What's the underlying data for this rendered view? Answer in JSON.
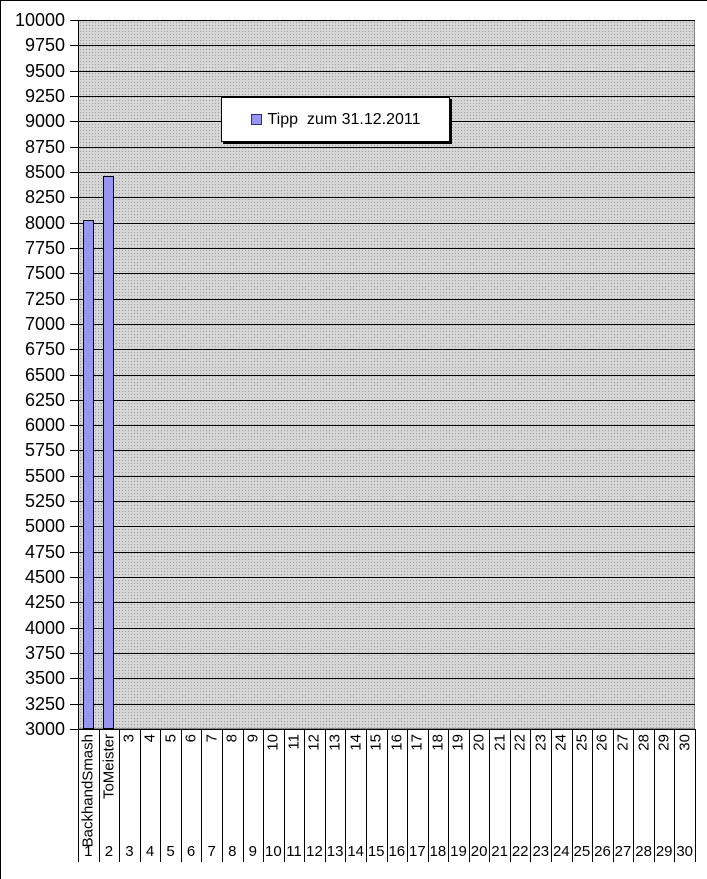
{
  "chart_data": {
    "type": "bar",
    "title": "",
    "legend": {
      "label": "Tipp  zum 31.12.2011",
      "position": "top-center"
    },
    "y_axis": {
      "min": 3000,
      "max": 10000,
      "step": 250,
      "ticks": [
        "10000",
        "9750",
        "9500",
        "9250",
        "9000",
        "8750",
        "8500",
        "8250",
        "8000",
        "7750",
        "7500",
        "7250",
        "7000",
        "6750",
        "6500",
        "6250",
        "6000",
        "5750",
        "5500",
        "5250",
        "5000",
        "4750",
        "4500",
        "4250",
        "4000",
        "3750",
        "3500",
        "3250",
        "3000"
      ]
    },
    "x_axis": {
      "level1_labels": [
        "BackhandSmash",
        "ToMeister",
        "3",
        "4",
        "5",
        "6",
        "7",
        "8",
        "9",
        "10",
        "11",
        "12",
        "13",
        "14",
        "15",
        "16",
        "17",
        "18",
        "19",
        "20",
        "21",
        "22",
        "23",
        "24",
        "25",
        "26",
        "27",
        "28",
        "29",
        "30"
      ],
      "level2_labels": [
        "1",
        "2",
        "3",
        "4",
        "5",
        "6",
        "7",
        "8",
        "9",
        "10",
        "11",
        "12",
        "13",
        "14",
        "15",
        "16",
        "17",
        "18",
        "19",
        "20",
        "21",
        "22",
        "23",
        "24",
        "25",
        "26",
        "27",
        "28",
        "29",
        "30"
      ]
    },
    "series": [
      {
        "name": "Tipp  zum 31.12.2011",
        "values": [
          8030,
          8460,
          null,
          null,
          null,
          null,
          null,
          null,
          null,
          null,
          null,
          null,
          null,
          null,
          null,
          null,
          null,
          null,
          null,
          null,
          null,
          null,
          null,
          null,
          null,
          null,
          null,
          null,
          null,
          null
        ]
      }
    ],
    "grid": "horizontal",
    "colors": {
      "bar_fill": "#9797F2",
      "bar_border": "#000000",
      "plot_bg": "#D6D6D6",
      "plot_dot": "#9E9E9E",
      "gridline": "#000000",
      "legend_bg": "#FFFFFF",
      "legend_marker": "#9797F2"
    }
  }
}
